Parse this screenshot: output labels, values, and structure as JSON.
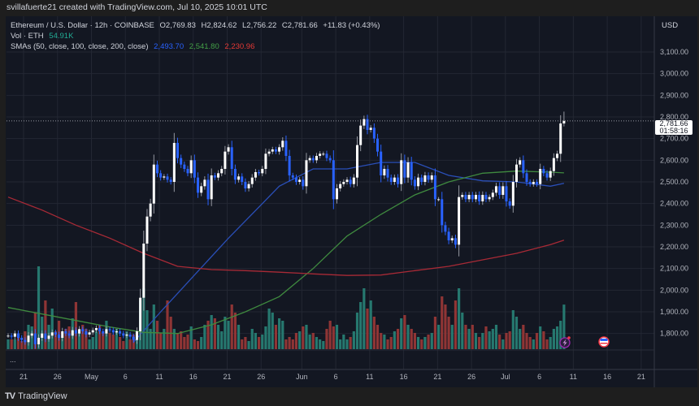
{
  "header": {
    "credit": "svillafuerte21 created with TradingView.com, Jul 10, 2025 10:01 UTC"
  },
  "legend": {
    "symbol": "Ethereum / U.S. Dollar · 12h · COINBASE",
    "open": "O2,769.83",
    "high": "H2,824.62",
    "low": "L2,756.22",
    "close": "C2,781.66",
    "change": "+11.83 (+0.43%)",
    "vol_label": "Vol · ETH",
    "vol_value": "54.91K",
    "sma_label": "SMAs (50, close, 100, close, 200, close)",
    "sma50": "2,493.70",
    "sma100": "2,541.80",
    "sma200": "2,230.96"
  },
  "currency": "USD",
  "price_label": {
    "price": "2,781.66",
    "countdown": "01:58:16"
  },
  "pane_menu": "...",
  "footer": {
    "logo_text": "TradingView"
  },
  "icons": {
    "event_marker": "lightning-icon",
    "economic_event": "us-flag-icon"
  },
  "colors": {
    "up": "#ffffff",
    "down": "#2962ff",
    "vol_up": "#26786f",
    "vol_down": "#8f3535",
    "sma50": "#2a4fb8",
    "sma100": "#3f8a3f",
    "sma200": "#a82a36",
    "background": "#131722"
  },
  "chart_data": {
    "type": "candlestick",
    "interval": "12h",
    "first_candle": "2025-04-18 12:00",
    "last_candle": "2025-07-10 00:00",
    "y_ticks": [
      "3,100.00",
      "3,000.00",
      "2,900.00",
      "2,800.00",
      "2,700.00",
      "2,600.00",
      "2,500.00",
      "2,400.00",
      "2,300.00",
      "2,200.00",
      "2,100.00",
      "2,000.00",
      "1,900.00",
      "1,800.00"
    ],
    "y_tick_values": [
      3100,
      3000,
      2900,
      2800,
      2700,
      2600,
      2500,
      2400,
      2300,
      2200,
      2100,
      2000,
      1900,
      1800
    ],
    "x_ticks": [
      "21",
      "26",
      "May",
      "6",
      "11",
      "16",
      "21",
      "26",
      "Jun",
      "6",
      "11",
      "16",
      "21",
      "26",
      "Jul",
      "6",
      "11",
      "16",
      "21"
    ],
    "x_tick_days": [
      2.5,
      7.5,
      12.5,
      17.5,
      22.5,
      27.5,
      32.5,
      37.5,
      43.5,
      48.5,
      53.5,
      58.5,
      63.5,
      68.5,
      73.5,
      78.5,
      83.5,
      88.5,
      93.5
    ],
    "ylim": [
      1730,
      3140
    ],
    "closes": [
      1790,
      1785,
      1800,
      1780,
      1770,
      1760,
      1790,
      1800,
      1750,
      1780,
      1800,
      1775,
      1790,
      1805,
      1795,
      1780,
      1810,
      1800,
      1790,
      1815,
      1800,
      1820,
      1810,
      1795,
      1805,
      1815,
      1825,
      1810,
      1800,
      1820,
      1815,
      1805,
      1810,
      1800,
      1790,
      1795,
      1785,
      1770,
      1810,
      1965,
      2215,
      2340,
      2400,
      2580,
      2540,
      2520,
      2525,
      2510,
      2500,
      2680,
      2610,
      2580,
      2560,
      2540,
      2600,
      2520,
      2450,
      2480,
      2510,
      2420,
      2530,
      2520,
      2540,
      2560,
      2640,
      2660,
      2560,
      2510,
      2525,
      2500,
      2470,
      2490,
      2520,
      2545,
      2540,
      2560,
      2630,
      2640,
      2650,
      2640,
      2660,
      2690,
      2620,
      2530,
      2520,
      2500,
      2510,
      2480,
      2600,
      2610,
      2600,
      2620,
      2630,
      2630,
      2610,
      2600,
      2420,
      2470,
      2490,
      2500,
      2510,
      2490,
      2520,
      2670,
      2760,
      2790,
      2740,
      2750,
      2700,
      2640,
      2530,
      2560,
      2520,
      2500,
      2520,
      2490,
      2600,
      2520,
      2590,
      2510,
      2480,
      2520,
      2500,
      2530,
      2510,
      2530,
      2420,
      2420,
      2300,
      2270,
      2230,
      2240,
      2210,
      2430,
      2440,
      2420,
      2440,
      2420,
      2440,
      2410,
      2440,
      2420,
      2430,
      2450,
      2480,
      2440,
      2480,
      2410,
      2390,
      2500,
      2580,
      2600,
      2540,
      2500,
      2490,
      2500,
      2490,
      2560,
      2540,
      2520,
      2550,
      2610,
      2630,
      2769.83,
      2781.66
    ],
    "last_ohlc": [
      2769.83,
      2824.62,
      2756.22,
      2781.66
    ],
    "volume_k": [
      12,
      12,
      12,
      15,
      10,
      22,
      30,
      28,
      45,
      102,
      40,
      60,
      30,
      50,
      22,
      35,
      15,
      25,
      28,
      38,
      58,
      20,
      30,
      25,
      12,
      15,
      22,
      30,
      20,
      35,
      20,
      18,
      25,
      15,
      10,
      22,
      12,
      18,
      20,
      60,
      75,
      48,
      25,
      55,
      35,
      20,
      25,
      60,
      40,
      25,
      20,
      22,
      15,
      18,
      28,
      12,
      10,
      15,
      30,
      35,
      42,
      38,
      30,
      22,
      40,
      35,
      55,
      45,
      30,
      12,
      15,
      10,
      25,
      20,
      15,
      18,
      28,
      50,
      45,
      30,
      38,
      35,
      12,
      15,
      12,
      20,
      22,
      28,
      30,
      18,
      20,
      15,
      12,
      10,
      25,
      35,
      28,
      30,
      12,
      18,
      12,
      15,
      22,
      45,
      58,
      75,
      50,
      60,
      40,
      30,
      20,
      18,
      12,
      15,
      22,
      25,
      38,
      42,
      30,
      25,
      20,
      15,
      12,
      15,
      18,
      20,
      40,
      30,
      65,
      55,
      40,
      30,
      60,
      75,
      45,
      30,
      25,
      30,
      20,
      15,
      20,
      28,
      22,
      25,
      30,
      18,
      12,
      20,
      22,
      48,
      40,
      25,
      30,
      20,
      15,
      12,
      20,
      28,
      22,
      12,
      15,
      25,
      28,
      35,
      54.91
    ],
    "sma": [
      {
        "name": "SMA 50",
        "color": "#2a4fb8",
        "points": [
          [
            37,
            1760
          ],
          [
            45,
            1900
          ],
          [
            55,
            2070
          ],
          [
            65,
            2240
          ],
          [
            75,
            2400
          ],
          [
            80,
            2480
          ],
          [
            90,
            2560
          ],
          [
            100,
            2560
          ],
          [
            110,
            2590
          ],
          [
            120,
            2590
          ],
          [
            130,
            2530
          ],
          [
            140,
            2505
          ],
          [
            150,
            2500
          ],
          [
            160,
            2480
          ],
          [
            164,
            2493.7
          ]
        ]
      },
      {
        "name": "SMA 100",
        "color": "#3f8a3f",
        "points": [
          [
            0,
            1920
          ],
          [
            10,
            1890
          ],
          [
            20,
            1860
          ],
          [
            30,
            1830
          ],
          [
            40,
            1805
          ],
          [
            50,
            1800
          ],
          [
            60,
            1840
          ],
          [
            70,
            1900
          ],
          [
            80,
            1970
          ],
          [
            90,
            2100
          ],
          [
            100,
            2250
          ],
          [
            110,
            2350
          ],
          [
            120,
            2440
          ],
          [
            130,
            2500
          ],
          [
            140,
            2540
          ],
          [
            150,
            2550
          ],
          [
            160,
            2545
          ],
          [
            164,
            2541.8
          ]
        ]
      },
      {
        "name": "SMA 200",
        "color": "#a82a36",
        "points": [
          [
            0,
            2430
          ],
          [
            10,
            2370
          ],
          [
            20,
            2300
          ],
          [
            30,
            2240
          ],
          [
            40,
            2170
          ],
          [
            50,
            2110
          ],
          [
            60,
            2095
          ],
          [
            70,
            2090
          ],
          [
            80,
            2083
          ],
          [
            90,
            2075
          ],
          [
            100,
            2068
          ],
          [
            110,
            2070
          ],
          [
            120,
            2090
          ],
          [
            130,
            2110
          ],
          [
            140,
            2140
          ],
          [
            150,
            2170
          ],
          [
            160,
            2210
          ],
          [
            164,
            2230.96
          ]
        ]
      }
    ]
  }
}
